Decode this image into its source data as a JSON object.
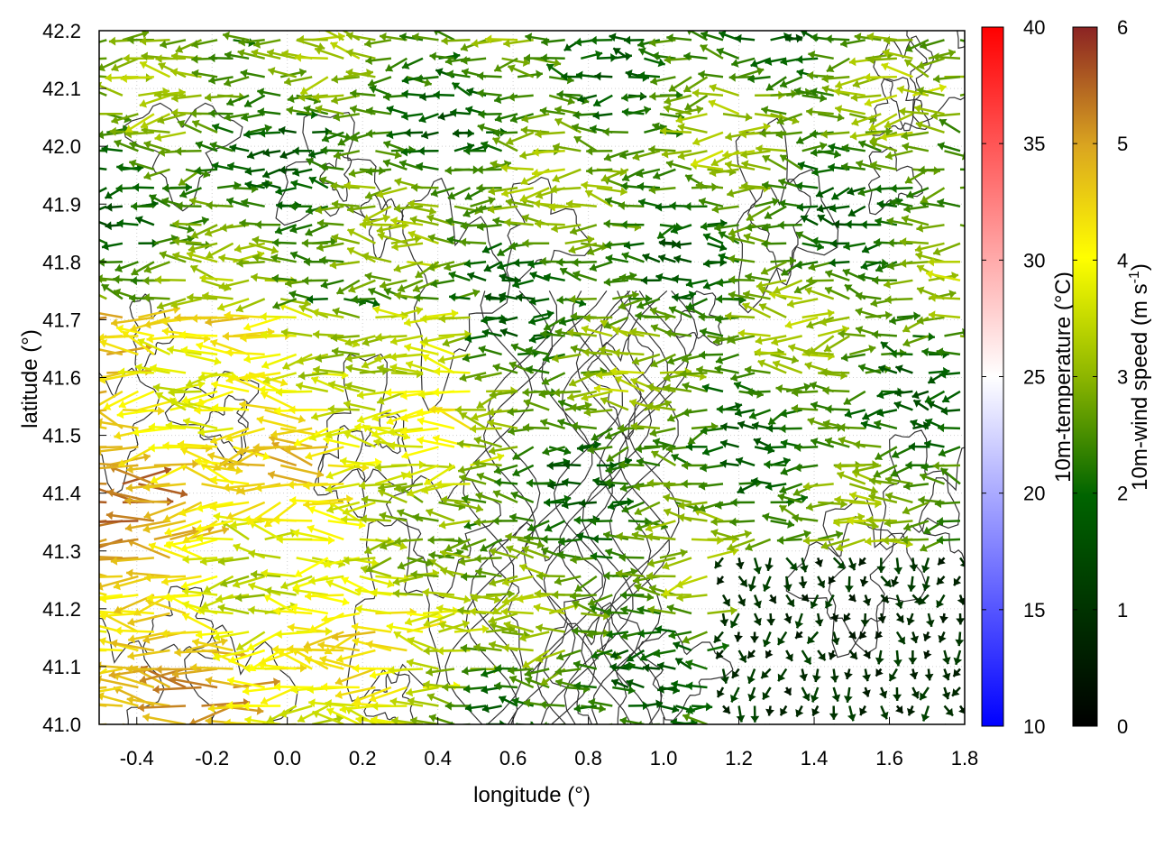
{
  "chart_data": {
    "type": "vector-field",
    "xlabel": "longitude (°)",
    "ylabel": "latitude (°)",
    "xlim": [
      -0.5,
      1.8
    ],
    "ylim": [
      41.0,
      42.2
    ],
    "xticks": [
      "-0.4",
      "-0.2",
      "0.0",
      "0.2",
      "0.4",
      "0.6",
      "0.8",
      "1.0",
      "1.2",
      "1.4",
      "1.6",
      "1.8"
    ],
    "yticks": [
      "41.0",
      "41.1",
      "41.2",
      "41.3",
      "41.4",
      "41.5",
      "41.6",
      "41.7",
      "41.8",
      "41.9",
      "42.0",
      "42.1",
      "42.2"
    ],
    "grid": true,
    "contours": "terrain elevation (black isolines)",
    "colorbars": [
      {
        "name": "10m-temperature",
        "label": "10m-temperature (°C)",
        "range": [
          10,
          40
        ],
        "ticks": [
          "10",
          "15",
          "20",
          "25",
          "30",
          "35",
          "40"
        ],
        "colors": [
          "#0000ff",
          "#ffffff",
          "#ff0000"
        ]
      },
      {
        "name": "10m-wind speed",
        "label_main": "10m-wind speed (m s",
        "label_sup": "-1",
        "label_end": ")",
        "range": [
          0,
          6
        ],
        "ticks": [
          "0",
          "1",
          "2",
          "3",
          "4",
          "5",
          "6"
        ],
        "colors": [
          "#000000",
          "#006400",
          "#8db600",
          "#ffff00",
          "#daa520",
          "#8b2323"
        ]
      }
    ],
    "wind_field_summary": {
      "dominant_direction": "westward (easterly flow) over most of domain",
      "strongest_winds_region": "lon -0.5 to 0.5, lat 41.0 to 41.7 (4-6 m/s)",
      "weakest_winds_region": "lon 1.2 to 1.8, lat 41.0 to 41.3 (0-1 m/s)",
      "typical_speed": 2.5
    }
  }
}
